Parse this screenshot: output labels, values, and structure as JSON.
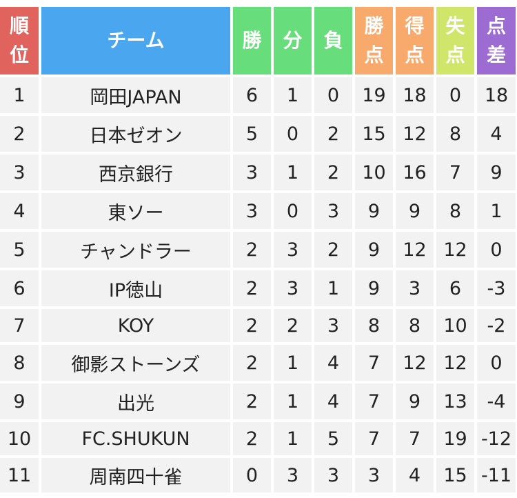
{
  "headers": {
    "rank": [
      "順",
      "位"
    ],
    "team": "チーム",
    "wins": "勝",
    "draws": "分",
    "losses": "負",
    "points": [
      "勝",
      "点"
    ],
    "goals_for": [
      "得",
      "点"
    ],
    "goals_against": [
      "失",
      "点"
    ],
    "goal_diff": [
      "点",
      "差"
    ]
  },
  "colors": {
    "rank_header": "#e0645d",
    "team_header": "#4aa6ef",
    "result_header": "#67dd7c",
    "points_header": "#f8aa6c",
    "goals_against_header": "#cfe66a",
    "goal_diff_header": "#9c6cd3",
    "row_background": "#f2f2f2"
  },
  "rows": [
    {
      "rank": "1",
      "team": "岡田JAPAN",
      "wins": "6",
      "draws": "1",
      "losses": "0",
      "points": "19",
      "gf": "18",
      "ga": "0",
      "diff": "18"
    },
    {
      "rank": "2",
      "team": "日本ゼオン",
      "wins": "5",
      "draws": "0",
      "losses": "2",
      "points": "15",
      "gf": "12",
      "ga": "8",
      "diff": "4"
    },
    {
      "rank": "3",
      "team": "西京銀行",
      "wins": "3",
      "draws": "1",
      "losses": "2",
      "points": "10",
      "gf": "16",
      "ga": "7",
      "diff": "9"
    },
    {
      "rank": "4",
      "team": "東ソー",
      "wins": "3",
      "draws": "0",
      "losses": "3",
      "points": "9",
      "gf": "9",
      "ga": "8",
      "diff": "1"
    },
    {
      "rank": "5",
      "team": "チャンドラー",
      "wins": "2",
      "draws": "3",
      "losses": "2",
      "points": "9",
      "gf": "12",
      "ga": "12",
      "diff": "0"
    },
    {
      "rank": "6",
      "team": "IP徳山",
      "wins": "2",
      "draws": "3",
      "losses": "1",
      "points": "9",
      "gf": "3",
      "ga": "6",
      "diff": "-3"
    },
    {
      "rank": "7",
      "team": "KOY",
      "wins": "2",
      "draws": "2",
      "losses": "3",
      "points": "8",
      "gf": "8",
      "ga": "10",
      "diff": "-2"
    },
    {
      "rank": "8",
      "team": "御影ストーンズ",
      "wins": "2",
      "draws": "1",
      "losses": "4",
      "points": "7",
      "gf": "12",
      "ga": "12",
      "diff": "0"
    },
    {
      "rank": "9",
      "team": "出光",
      "wins": "2",
      "draws": "1",
      "losses": "4",
      "points": "7",
      "gf": "9",
      "ga": "13",
      "diff": "-4"
    },
    {
      "rank": "10",
      "team": "FC.SHUKUN",
      "wins": "2",
      "draws": "1",
      "losses": "5",
      "points": "7",
      "gf": "7",
      "ga": "19",
      "diff": "-12"
    },
    {
      "rank": "11",
      "team": "周南四十雀",
      "wins": "0",
      "draws": "3",
      "losses": "3",
      "points": "3",
      "gf": "4",
      "ga": "15",
      "diff": "-11"
    }
  ]
}
